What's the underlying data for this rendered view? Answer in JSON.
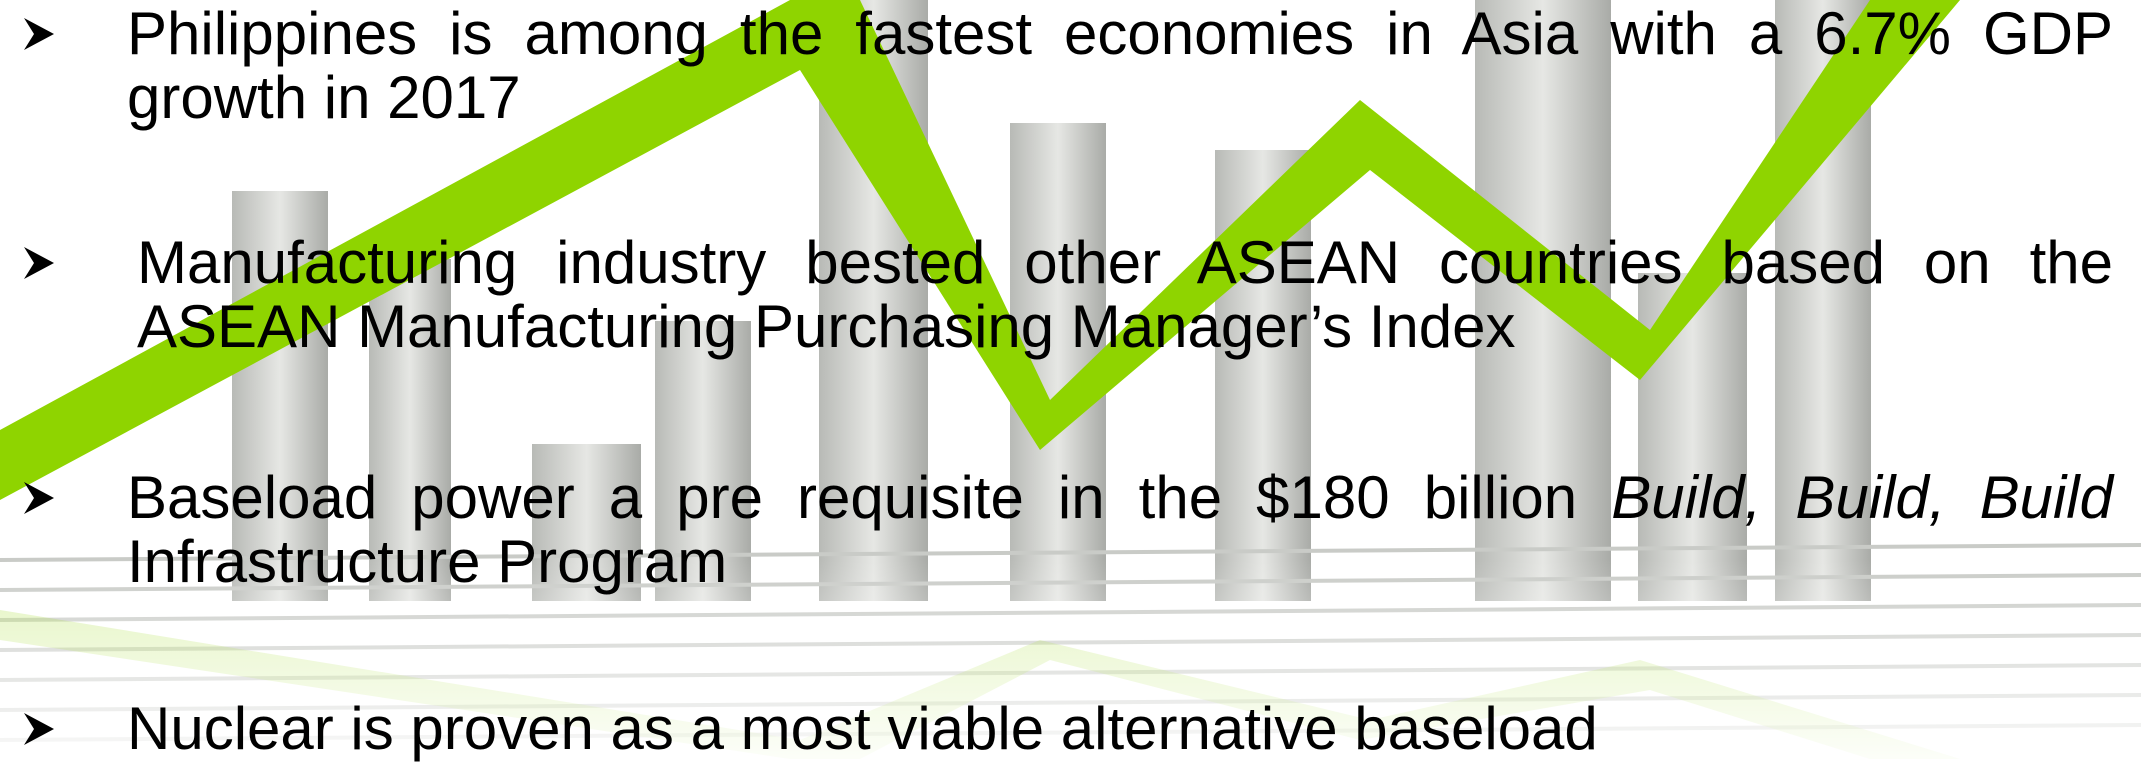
{
  "bullets": [
    {
      "text": "Philippines is among the fastest economies in Asia  with a 6.7% GDP growth in 2017"
    },
    {
      "text": "Manufacturing industry bested other ASEAN countries based on the ASEAN Manufacturing Purchasing Manager’s Index"
    },
    {
      "parts": [
        "Baseload power a pre requisite in the $180 billion ",
        "Build, Build, Build",
        " Infrastructure Program"
      ]
    },
    {
      "text": "Nuclear is proven as a most viable alternative baseload"
    }
  ]
}
